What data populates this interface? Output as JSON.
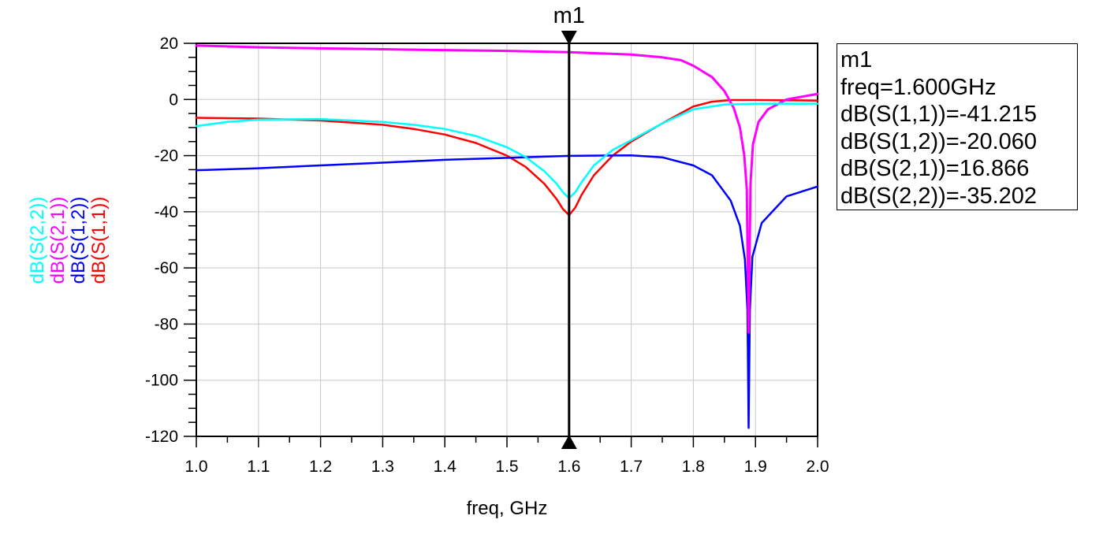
{
  "chart_data": {
    "type": "line",
    "xlabel": "freq, GHz",
    "xlim": [
      1.0,
      2.0
    ],
    "ylim": [
      -120,
      20
    ],
    "x_ticks": [
      "1.0",
      "1.1",
      "1.2",
      "1.3",
      "1.4",
      "1.5",
      "1.6",
      "1.7",
      "1.8",
      "1.9",
      "2.0"
    ],
    "y_ticks": [
      "20",
      "0",
      "-20",
      "-40",
      "-60",
      "-80",
      "-100",
      "-120"
    ],
    "grid": true,
    "series": [
      {
        "name": "dB(S(1,1))",
        "color": "#ff0000",
        "x": [
          1.0,
          1.1,
          1.2,
          1.3,
          1.35,
          1.4,
          1.45,
          1.5,
          1.53,
          1.56,
          1.58,
          1.59,
          1.6,
          1.61,
          1.62,
          1.64,
          1.67,
          1.7,
          1.75,
          1.8,
          1.83,
          1.86,
          1.9,
          1.95,
          2.0
        ],
        "values": [
          -6.5,
          -6.8,
          -7.5,
          -9.0,
          -10.5,
          -12.5,
          -15.5,
          -20.0,
          -24.0,
          -30.0,
          -35.5,
          -39.0,
          -41.2,
          -38.5,
          -34.0,
          -27.0,
          -20.0,
          -15.0,
          -8.5,
          -2.5,
          -0.8,
          -0.2,
          -0.2,
          -0.3,
          -0.4
        ]
      },
      {
        "name": "dB(S(1,2))",
        "color": "#0000ff",
        "x": [
          1.0,
          1.1,
          1.2,
          1.3,
          1.4,
          1.5,
          1.6,
          1.7,
          1.75,
          1.8,
          1.83,
          1.86,
          1.875,
          1.883,
          1.887,
          1.889,
          1.891,
          1.895,
          1.91,
          1.95,
          2.0
        ],
        "values": [
          -25.2,
          -24.5,
          -23.5,
          -22.5,
          -21.5,
          -20.8,
          -20.1,
          -19.9,
          -20.6,
          -23.5,
          -27.0,
          -36.0,
          -45.0,
          -57.0,
          -75.0,
          -117.0,
          -75.0,
          -56.0,
          -44.0,
          -34.5,
          -31.0
        ]
      },
      {
        "name": "dB(S(2,1))",
        "color": "#ff00ff",
        "x": [
          1.0,
          1.1,
          1.2,
          1.3,
          1.4,
          1.5,
          1.6,
          1.7,
          1.75,
          1.78,
          1.8,
          1.83,
          1.85,
          1.865,
          1.875,
          1.882,
          1.886,
          1.889,
          1.892,
          1.896,
          1.905,
          1.92,
          1.95,
          2.0
        ],
        "values": [
          19.2,
          18.6,
          18.2,
          17.9,
          17.6,
          17.3,
          16.87,
          16.0,
          15.0,
          14.0,
          12.0,
          8.0,
          3.0,
          -3.0,
          -10.0,
          -20.0,
          -32.0,
          -83.0,
          -30.0,
          -16.0,
          -8.0,
          -3.5,
          0.0,
          2.0
        ]
      },
      {
        "name": "dB(S(2,2))",
        "color": "#00ffff",
        "x": [
          1.0,
          1.05,
          1.1,
          1.2,
          1.3,
          1.35,
          1.4,
          1.45,
          1.5,
          1.53,
          1.56,
          1.58,
          1.59,
          1.6,
          1.61,
          1.62,
          1.64,
          1.67,
          1.7,
          1.75,
          1.8,
          1.85,
          1.9,
          2.0
        ],
        "values": [
          -9.5,
          -8.0,
          -7.2,
          -7.0,
          -8.0,
          -9.0,
          -10.5,
          -13.0,
          -17.0,
          -20.5,
          -25.5,
          -30.0,
          -33.0,
          -35.2,
          -33.0,
          -29.5,
          -23.5,
          -18.0,
          -14.5,
          -8.5,
          -3.5,
          -1.8,
          -1.5,
          -1.5
        ]
      }
    ],
    "marker": {
      "name": "m1",
      "x": 1.6,
      "readout": [
        "m1",
        "freq=1.600GHz",
        "dB(S(1,1))=-41.215",
        "dB(S(1,2))=-20.060",
        "dB(S(2,1))=16.866",
        "dB(S(2,2))=-35.202"
      ]
    },
    "ylabels": [
      {
        "text": "dB(S(2,2))",
        "color": "#00ffff"
      },
      {
        "text": "dB(S(2,1))",
        "color": "#ff00ff"
      },
      {
        "text": "dB(S(1,2))",
        "color": "#0000ff"
      },
      {
        "text": "dB(S(1,1))",
        "color": "#ff0000"
      }
    ]
  }
}
